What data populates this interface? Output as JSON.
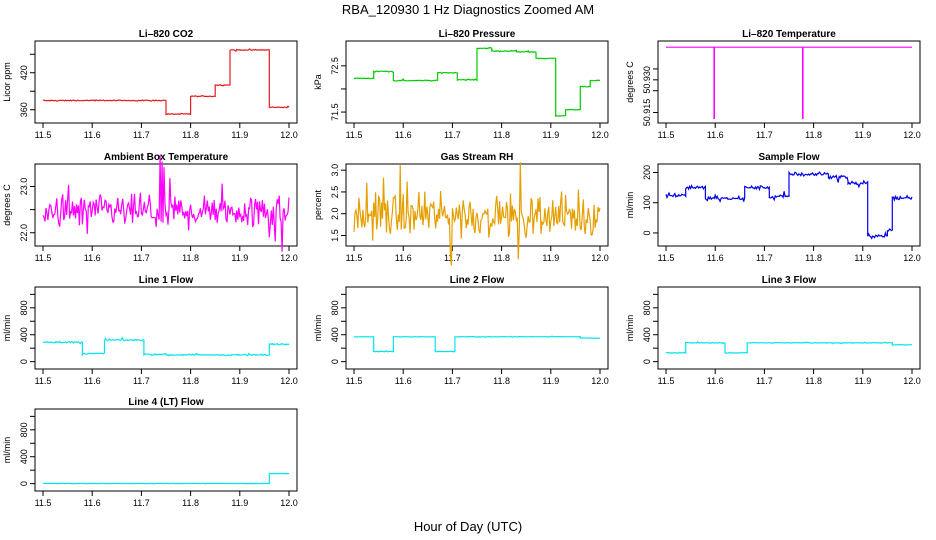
{
  "figure_title": "RBA_120930  1 Hz Diagnostics Zoomed AM",
  "x_axis_label": "Hour of Day (UTC)",
  "chart_data": [
    {
      "type": "line",
      "title": "Li–820 CO2",
      "ylabel": "Licor ppm",
      "xlim": [
        11.5,
        12.0
      ],
      "xticks": [
        11.5,
        11.6,
        11.7,
        11.8,
        11.9,
        12.0
      ],
      "xtick_labels": [
        "11.5",
        "11.6",
        "11.7",
        "11.8",
        "11.9",
        "12.0"
      ],
      "ylim": [
        345,
        465
      ],
      "yticks": [
        360,
        390,
        420,
        450
      ],
      "ytick_labels": [
        "360",
        "",
        "420",
        ""
      ],
      "color": "#e41a1c",
      "noise": 0.8,
      "grid": false,
      "segments": [
        [
          11.5,
          11.75,
          375
        ],
        [
          11.75,
          11.8,
          353
        ],
        [
          11.8,
          11.85,
          382
        ],
        [
          11.85,
          11.88,
          400
        ],
        [
          11.88,
          11.96,
          457
        ],
        [
          11.96,
          12.0,
          364
        ]
      ]
    },
    {
      "type": "line",
      "title": "Li–820 Pressure",
      "ylabel": "kPa",
      "xlim": [
        11.5,
        12.0
      ],
      "xticks": [
        11.5,
        11.6,
        11.7,
        11.8,
        11.9,
        12.0
      ],
      "xtick_labels": [
        "11.5",
        "11.6",
        "11.7",
        "11.8",
        "11.9",
        "12.0"
      ],
      "ylim": [
        71.35,
        72.95
      ],
      "yticks": [
        71.5,
        72.0,
        72.5
      ],
      "ytick_labels": [
        "71.5",
        "",
        "72.5"
      ],
      "color": "#00cc00",
      "noise": 0.01,
      "grid": false,
      "segments": [
        [
          11.5,
          11.54,
          72.23
        ],
        [
          11.54,
          11.58,
          72.38
        ],
        [
          11.58,
          11.67,
          72.18
        ],
        [
          11.67,
          11.71,
          72.35
        ],
        [
          11.71,
          11.75,
          72.2
        ],
        [
          11.75,
          11.78,
          72.88
        ],
        [
          11.78,
          11.83,
          72.82
        ],
        [
          11.83,
          11.87,
          72.8
        ],
        [
          11.87,
          11.91,
          72.66
        ],
        [
          11.91,
          11.93,
          71.42
        ],
        [
          11.93,
          11.96,
          71.55
        ],
        [
          11.96,
          11.98,
          72.05
        ],
        [
          11.98,
          12.0,
          72.18
        ]
      ]
    },
    {
      "type": "line",
      "title": "Li–820 Temperature",
      "ylabel": "degrees C",
      "xlim": [
        11.5,
        12.0
      ],
      "xticks": [
        11.5,
        11.6,
        11.7,
        11.8,
        11.9,
        12.0
      ],
      "xtick_labels": [
        "11.5",
        "11.6",
        "11.7",
        "11.8",
        "11.9",
        "12.0"
      ],
      "ylim": [
        50.912,
        50.946
      ],
      "yticks": [
        50.915,
        50.925,
        50.93,
        50.935
      ],
      "ytick_labels": [
        "50.915",
        "",
        "50.930",
        ""
      ],
      "color": "#ff00ff",
      "noise": 0.0,
      "grid": false,
      "segments": [
        [
          11.5,
          12.0,
          50.945
        ]
      ],
      "spikes": [
        [
          11.598,
          50.912
        ],
        [
          11.778,
          50.912
        ]
      ]
    },
    {
      "type": "line",
      "title": "Ambient Box Temperature",
      "ylabel": "degrees C",
      "xlim": [
        11.5,
        12.0
      ],
      "xticks": [
        11.5,
        11.6,
        11.7,
        11.8,
        11.9,
        12.0
      ],
      "xtick_labels": [
        "11.5",
        "11.6",
        "11.7",
        "11.8",
        "11.9",
        "12.0"
      ],
      "ylim": [
        21.8,
        23.4
      ],
      "yticks": [
        22.0,
        22.5,
        23.0
      ],
      "ytick_labels": [
        "22.0",
        "",
        "23.0"
      ],
      "color": "#ff00ff",
      "noise": 0.35,
      "grid": false,
      "segments": [
        [
          11.5,
          12.0,
          22.45
        ]
      ]
    },
    {
      "type": "line",
      "title": "Gas Stream RH",
      "ylabel": "percent",
      "xlim": [
        11.5,
        12.0
      ],
      "xticks": [
        11.5,
        11.6,
        11.7,
        11.8,
        11.9,
        12.0
      ],
      "xtick_labels": [
        "11.5",
        "11.6",
        "11.7",
        "11.8",
        "11.9",
        "12.0"
      ],
      "ylim": [
        1.35,
        3.05
      ],
      "yticks": [
        1.5,
        2.0,
        2.5,
        3.0
      ],
      "ytick_labels": [
        "1.5",
        "2.0",
        "2.5",
        "3.0"
      ],
      "color": "#e69f00",
      "noise": 0.45,
      "grid": false,
      "segments": [
        [
          11.5,
          12.0,
          1.95
        ]
      ]
    },
    {
      "type": "line",
      "title": "Sample Flow",
      "ylabel": "ml/min",
      "xlim": [
        11.5,
        12.0
      ],
      "xticks": [
        11.5,
        11.6,
        11.7,
        11.8,
        11.9,
        12.0
      ],
      "xtick_labels": [
        "11.5",
        "11.6",
        "11.7",
        "11.8",
        "11.9",
        "12.0"
      ],
      "ylim": [
        -30,
        215
      ],
      "yticks": [
        0,
        100,
        200
      ],
      "ytick_labels": [
        "0",
        "100",
        "200"
      ],
      "color": "#0000ee",
      "noise": 6,
      "grid": false,
      "segments": [
        [
          11.5,
          11.54,
          125
        ],
        [
          11.54,
          11.58,
          150
        ],
        [
          11.58,
          11.66,
          115
        ],
        [
          11.66,
          11.71,
          150
        ],
        [
          11.71,
          11.75,
          120
        ],
        [
          11.75,
          11.83,
          195
        ],
        [
          11.83,
          11.87,
          185
        ],
        [
          11.87,
          11.91,
          165
        ],
        [
          11.91,
          11.95,
          -10
        ],
        [
          11.95,
          11.96,
          10
        ],
        [
          11.96,
          12.0,
          115
        ]
      ]
    },
    {
      "type": "line",
      "title": "Line 1 Flow",
      "ylabel": "ml/min",
      "xlim": [
        11.5,
        12.0
      ],
      "xticks": [
        11.5,
        11.6,
        11.7,
        11.8,
        11.9,
        12.0
      ],
      "xtick_labels": [
        "11.5",
        "11.6",
        "11.7",
        "11.8",
        "11.9",
        "12.0"
      ],
      "ylim": [
        -50,
        1050
      ],
      "yticks": [
        0,
        200,
        400,
        600,
        800,
        1000
      ],
      "ytick_labels": [
        "0",
        "",
        "400",
        "",
        "800",
        ""
      ],
      "color": "#00e5ee",
      "noise": 10,
      "grid": false,
      "segments": [
        [
          11.5,
          11.58,
          290
        ],
        [
          11.58,
          11.625,
          120
        ],
        [
          11.625,
          11.705,
          320
        ],
        [
          11.705,
          11.75,
          110
        ],
        [
          11.75,
          11.96,
          100
        ],
        [
          11.96,
          12.0,
          260
        ]
      ]
    },
    {
      "type": "line",
      "title": "Line 2 Flow",
      "ylabel": "ml/min",
      "xlim": [
        11.5,
        12.0
      ],
      "xticks": [
        11.5,
        11.6,
        11.7,
        11.8,
        11.9,
        12.0
      ],
      "xtick_labels": [
        "11.5",
        "11.6",
        "11.7",
        "11.8",
        "11.9",
        "12.0"
      ],
      "ylim": [
        -50,
        1050
      ],
      "yticks": [
        0,
        200,
        400,
        600,
        800,
        1000
      ],
      "ytick_labels": [
        "0",
        "",
        "400",
        "",
        "800",
        ""
      ],
      "color": "#00e5ee",
      "noise": 3,
      "grid": false,
      "segments": [
        [
          11.5,
          11.54,
          370
        ],
        [
          11.54,
          11.58,
          150
        ],
        [
          11.58,
          11.665,
          370
        ],
        [
          11.665,
          11.705,
          150
        ],
        [
          11.705,
          11.96,
          370
        ],
        [
          11.96,
          12.0,
          350
        ]
      ]
    },
    {
      "type": "line",
      "title": "Line 3 Flow",
      "ylabel": "ml/min",
      "xlim": [
        11.5,
        12.0
      ],
      "xticks": [
        11.5,
        11.6,
        11.7,
        11.8,
        11.9,
        12.0
      ],
      "xtick_labels": [
        "11.5",
        "11.6",
        "11.7",
        "11.8",
        "11.9",
        "12.0"
      ],
      "ylim": [
        -50,
        1050
      ],
      "yticks": [
        0,
        200,
        400,
        600,
        800,
        1000
      ],
      "ytick_labels": [
        "0",
        "",
        "400",
        "",
        "800",
        ""
      ],
      "color": "#00e5ee",
      "noise": 5,
      "grid": false,
      "segments": [
        [
          11.5,
          11.54,
          130
        ],
        [
          11.54,
          11.62,
          280
        ],
        [
          11.62,
          11.665,
          130
        ],
        [
          11.665,
          11.96,
          280
        ],
        [
          11.96,
          12.0,
          250
        ]
      ]
    },
    {
      "type": "line",
      "title": "Line 4 (LT) Flow",
      "ylabel": "ml/min",
      "xlim": [
        11.5,
        12.0
      ],
      "xticks": [
        11.5,
        11.6,
        11.7,
        11.8,
        11.9,
        12.0
      ],
      "xtick_labels": [
        "11.5",
        "11.6",
        "11.7",
        "11.8",
        "11.9",
        "12.0"
      ],
      "ylim": [
        -50,
        1050
      ],
      "yticks": [
        0,
        200,
        400,
        600,
        800,
        1000
      ],
      "ytick_labels": [
        "0",
        "",
        "400",
        "",
        "800",
        ""
      ],
      "color": "#00e5ee",
      "noise": 2,
      "grid": false,
      "segments": [
        [
          11.5,
          11.96,
          2
        ],
        [
          11.96,
          12.0,
          150
        ]
      ]
    }
  ]
}
